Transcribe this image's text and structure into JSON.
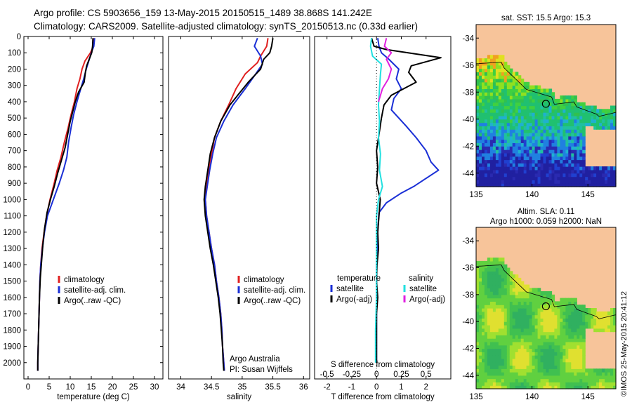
{
  "header": {
    "line1": "Argo profile: CS 5903656_159 13-May-2015 20150515_1489 38.868S 141.242E",
    "line2": "Climatology: CARS2009. Satellite-adjusted climatology: synTS_20150513.nc (0.33d earlier)"
  },
  "colors": {
    "climatology": "#e02020",
    "satellite": "#1a2fd6",
    "argo": "#000000",
    "sat_salt": "#22e0e0",
    "argo_salt": "#e020e0",
    "land": "#f7c49a"
  },
  "side_text": "©IMOS 25-May-2015 20:41:12",
  "chart_data": [
    {
      "type": "line",
      "xlabel": "temperature (deg C)",
      "ylabel": "",
      "xlim": [
        -1,
        32
      ],
      "ylim": [
        2100,
        0
      ],
      "xticks": [
        0,
        5,
        10,
        15,
        20,
        25,
        30
      ],
      "yticks": [
        0,
        100,
        200,
        300,
        400,
        500,
        600,
        700,
        800,
        900,
        1000,
        1100,
        1200,
        1300,
        1400,
        1500,
        1600,
        1700,
        1800,
        1900,
        2000
      ],
      "legend": "lower-center",
      "series": [
        {
          "name": "climatology",
          "color": "#e02020",
          "points": [
            [
              15.7,
              10
            ],
            [
              15.5,
              60
            ],
            [
              14.8,
              100
            ],
            [
              13.5,
              150
            ],
            [
              12.8,
              200
            ],
            [
              12.3,
              260
            ],
            [
              11.6,
              320
            ],
            [
              11.0,
              400
            ],
            [
              10.2,
              480
            ],
            [
              9.5,
              560
            ],
            [
              8.6,
              650
            ],
            [
              7.8,
              740
            ],
            [
              6.9,
              820
            ],
            [
              6.2,
              900
            ],
            [
              5.2,
              1000
            ],
            [
              4.4,
              1100
            ],
            [
              3.8,
              1200
            ],
            [
              3.3,
              1300
            ],
            [
              3.0,
              1400
            ],
            [
              2.8,
              1500
            ],
            [
              2.7,
              1600
            ],
            [
              2.6,
              1700
            ],
            [
              2.5,
              1800
            ],
            [
              2.4,
              1900
            ],
            [
              2.3,
              2000
            ],
            [
              2.3,
              2050
            ]
          ]
        },
        {
          "name": "satellite-adj. clim.",
          "color": "#1a2fd6",
          "points": [
            [
              15.8,
              10
            ],
            [
              15.6,
              60
            ],
            [
              15.0,
              100
            ],
            [
              14.4,
              150
            ],
            [
              13.8,
              200
            ],
            [
              13.2,
              260
            ],
            [
              12.5,
              320
            ],
            [
              11.6,
              400
            ],
            [
              10.8,
              480
            ],
            [
              10.2,
              560
            ],
            [
              9.6,
              650
            ],
            [
              9.2,
              740
            ],
            [
              8.4,
              820
            ],
            [
              7.4,
              900
            ],
            [
              6.0,
              1000
            ],
            [
              4.6,
              1100
            ],
            [
              3.9,
              1200
            ],
            [
              3.4,
              1300
            ],
            [
              3.0,
              1400
            ],
            [
              2.8,
              1500
            ],
            [
              2.7,
              1600
            ],
            [
              2.6,
              1700
            ],
            [
              2.5,
              1800
            ],
            [
              2.4,
              1900
            ],
            [
              2.3,
              2000
            ],
            [
              2.3,
              2050
            ]
          ]
        },
        {
          "name": "Argo(..raw -QC)",
          "color": "#000000",
          "points": [
            [
              15.4,
              10
            ],
            [
              15.3,
              60
            ],
            [
              15.1,
              100
            ],
            [
              14.5,
              140
            ],
            [
              13.9,
              180
            ],
            [
              13.6,
              220
            ],
            [
              13.3,
              280
            ],
            [
              12.0,
              340
            ],
            [
              11.2,
              400
            ],
            [
              10.6,
              460
            ],
            [
              10.0,
              520
            ],
            [
              9.4,
              600
            ],
            [
              8.8,
              680
            ],
            [
              7.9,
              760
            ],
            [
              7.0,
              840
            ],
            [
              6.2,
              920
            ],
            [
              5.3,
              1000
            ],
            [
              4.5,
              1080
            ],
            [
              3.9,
              1180
            ],
            [
              3.5,
              1280
            ],
            [
              3.2,
              1380
            ],
            [
              2.9,
              1480
            ],
            [
              2.7,
              1600
            ],
            [
              2.6,
              1700
            ],
            [
              2.5,
              1800
            ],
            [
              2.4,
              1900
            ],
            [
              2.3,
              2000
            ],
            [
              2.3,
              2050
            ]
          ]
        }
      ]
    },
    {
      "type": "line",
      "xlabel": "salinity",
      "xlim": [
        33.8,
        36.1
      ],
      "ylim": [
        2100,
        0
      ],
      "xticks": [
        34,
        34.5,
        35,
        35.5,
        36
      ],
      "legend": "lower-center",
      "series": [
        {
          "name": "climatology",
          "color": "#e02020",
          "points": [
            [
              35.42,
              10
            ],
            [
              35.4,
              60
            ],
            [
              35.3,
              120
            ],
            [
              35.25,
              160
            ],
            [
              35.05,
              230
            ],
            [
              34.9,
              320
            ],
            [
              34.78,
              420
            ],
            [
              34.65,
              520
            ],
            [
              34.55,
              620
            ],
            [
              34.5,
              720
            ],
            [
              34.46,
              820
            ],
            [
              34.42,
              920
            ],
            [
              34.4,
              1000
            ],
            [
              34.42,
              1100
            ],
            [
              34.46,
              1200
            ],
            [
              34.5,
              1300
            ],
            [
              34.55,
              1400
            ],
            [
              34.58,
              1500
            ],
            [
              34.62,
              1600
            ],
            [
              34.65,
              1700
            ],
            [
              34.67,
              1800
            ],
            [
              34.68,
              1900
            ],
            [
              34.7,
              2000
            ],
            [
              34.71,
              2050
            ]
          ]
        },
        {
          "name": "satellite-adj. clim.",
          "color": "#1a2fd6",
          "points": [
            [
              35.25,
              10
            ],
            [
              35.2,
              60
            ],
            [
              35.3,
              120
            ],
            [
              35.33,
              170
            ],
            [
              35.22,
              230
            ],
            [
              35.05,
              320
            ],
            [
              34.85,
              420
            ],
            [
              34.7,
              520
            ],
            [
              34.58,
              620
            ],
            [
              34.52,
              720
            ],
            [
              34.47,
              820
            ],
            [
              34.43,
              920
            ],
            [
              34.4,
              1000
            ],
            [
              34.42,
              1100
            ],
            [
              34.46,
              1200
            ],
            [
              34.5,
              1300
            ],
            [
              34.55,
              1400
            ],
            [
              34.58,
              1500
            ],
            [
              34.62,
              1600
            ],
            [
              34.65,
              1700
            ],
            [
              34.67,
              1800
            ],
            [
              34.68,
              1900
            ],
            [
              34.7,
              2000
            ],
            [
              34.71,
              2050
            ]
          ]
        },
        {
          "name": "Argo(..raw -QC)",
          "color": "#000000",
          "points": [
            [
              35.5,
              10
            ],
            [
              35.48,
              60
            ],
            [
              35.45,
              100
            ],
            [
              35.35,
              140
            ],
            [
              35.3,
              200
            ],
            [
              35.1,
              280
            ],
            [
              34.95,
              350
            ],
            [
              34.8,
              420
            ],
            [
              34.65,
              520
            ],
            [
              34.55,
              620
            ],
            [
              34.48,
              720
            ],
            [
              34.44,
              820
            ],
            [
              34.4,
              920
            ],
            [
              34.38,
              1000
            ],
            [
              34.4,
              1100
            ],
            [
              34.44,
              1200
            ],
            [
              34.48,
              1300
            ],
            [
              34.53,
              1400
            ],
            [
              34.57,
              1500
            ],
            [
              34.61,
              1600
            ],
            [
              34.64,
              1700
            ],
            [
              34.66,
              1800
            ],
            [
              34.68,
              1900
            ],
            [
              34.69,
              2000
            ],
            [
              34.7,
              2050
            ]
          ]
        }
      ]
    },
    {
      "type": "line",
      "xlabel": "T difference from climatology",
      "xlabel_top": "S difference from climatology",
      "xlim": [
        -2.5,
        3.0
      ],
      "ylim": [
        2100,
        0
      ],
      "xticks": [
        -2,
        -1,
        0,
        1,
        2
      ],
      "xticks_top": [
        -0.5,
        -0.25,
        0,
        0.25,
        0.5
      ],
      "legend_titles": [
        "temperature",
        "salinity"
      ],
      "series": [
        {
          "name": "satellite",
          "quantity": "temperature",
          "color": "#1a2fd6",
          "points": [
            [
              0.05,
              10
            ],
            [
              0.1,
              60
            ],
            [
              0.2,
              100
            ],
            [
              0.5,
              140
            ],
            [
              0.9,
              200
            ],
            [
              0.8,
              260
            ],
            [
              1.0,
              320
            ],
            [
              0.7,
              380
            ],
            [
              0.6,
              450
            ],
            [
              1.2,
              550
            ],
            [
              1.6,
              620
            ],
            [
              2.0,
              700
            ],
            [
              2.2,
              770
            ],
            [
              2.5,
              820
            ],
            [
              2.0,
              870
            ],
            [
              1.5,
              920
            ],
            [
              1.0,
              960
            ],
            [
              0.4,
              1020
            ],
            [
              0.1,
              1080
            ],
            [
              0.05,
              1200
            ],
            [
              0.0,
              1400
            ],
            [
              0.0,
              1600
            ],
            [
              0.0,
              1800
            ],
            [
              0.0,
              2000
            ]
          ]
        },
        {
          "name": "Argo(-adj)",
          "quantity": "temperature",
          "color": "#000000",
          "points": [
            [
              -0.2,
              10
            ],
            [
              -0.1,
              60
            ],
            [
              0.4,
              80
            ],
            [
              2.6,
              130
            ],
            [
              1.4,
              180
            ],
            [
              1.3,
              220
            ],
            [
              1.6,
              280
            ],
            [
              1.1,
              320
            ],
            [
              0.6,
              360
            ],
            [
              0.3,
              420
            ],
            [
              0.2,
              500
            ],
            [
              0.1,
              600
            ],
            [
              0.0,
              700
            ],
            [
              0.05,
              800
            ],
            [
              0.0,
              900
            ],
            [
              0.15,
              1000
            ],
            [
              0.1,
              1100
            ],
            [
              0.05,
              1200
            ],
            [
              0.08,
              1300
            ],
            [
              0.02,
              1400
            ],
            [
              0.0,
              1500
            ],
            [
              0.05,
              1600
            ],
            [
              0.0,
              1700
            ],
            [
              0.0,
              1800
            ],
            [
              0.0,
              1900
            ],
            [
              0.0,
              2000
            ]
          ]
        },
        {
          "name": "satellite",
          "quantity": "salinity",
          "color": "#22e0e0",
          "points": [
            [
              -0.05,
              10
            ],
            [
              -0.06,
              60
            ],
            [
              -0.04,
              120
            ],
            [
              0.05,
              170
            ],
            [
              0.04,
              230
            ],
            [
              0.03,
              320
            ],
            [
              0.02,
              420
            ],
            [
              0.03,
              520
            ],
            [
              0.02,
              620
            ],
            [
              0.04,
              720
            ],
            [
              0.03,
              820
            ],
            [
              0.06,
              920
            ],
            [
              0.02,
              1000
            ],
            [
              0.0,
              1100
            ],
            [
              0.0,
              1200
            ],
            [
              0.0,
              1400
            ],
            [
              0.0,
              1600
            ],
            [
              -0.01,
              1800
            ],
            [
              -0.01,
              2000
            ]
          ]
        },
        {
          "name": "Argo(-adj)",
          "quantity": "salinity",
          "color": "#e020e0",
          "points": [
            [
              0.1,
              10
            ],
            [
              0.08,
              60
            ],
            [
              0.15,
              100
            ],
            [
              0.1,
              140
            ],
            [
              0.15,
              200
            ],
            [
              0.12,
              260
            ],
            [
              0.06,
              320
            ],
            [
              0.02,
              400
            ]
          ]
        }
      ]
    },
    {
      "type": "heatmap",
      "title": "sat. SST: 15.5 Argo: 15.3",
      "xlim": [
        135,
        147.5
      ],
      "ylim": [
        -45,
        -33
      ],
      "xticks": [
        135,
        140,
        145
      ],
      "yticks": [
        -34,
        -36,
        -38,
        -40,
        -42,
        -44
      ],
      "marker": {
        "lon": 141.242,
        "lat": -38.868
      }
    },
    {
      "type": "heatmap",
      "title": "Altim. SLA: 0.11",
      "subtitle": "Argo h1000: 0.059 h2000: NaN",
      "xlim": [
        135,
        147.5
      ],
      "ylim": [
        -45,
        -33
      ],
      "xticks": [
        135,
        140,
        145
      ],
      "yticks": [
        -34,
        -36,
        -38,
        -40,
        -42,
        -44
      ],
      "marker": {
        "lon": 141.242,
        "lat": -38.868
      }
    }
  ],
  "annotations": {
    "credit1": "Argo Australia",
    "credit2": "PI: Susan Wijffels"
  }
}
